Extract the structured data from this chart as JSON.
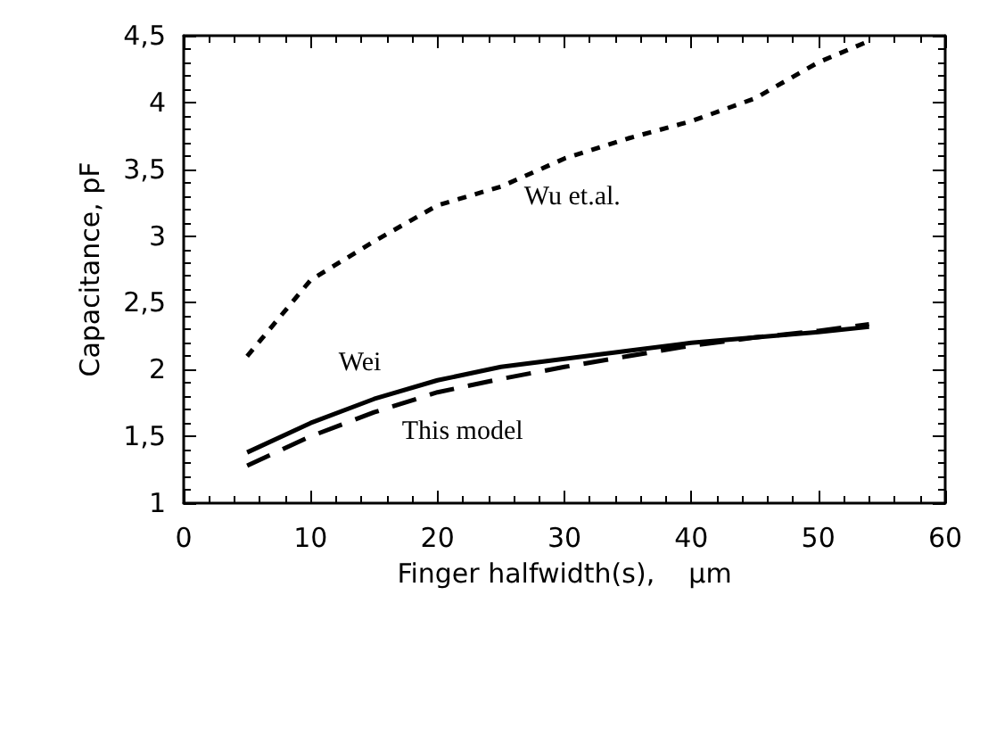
{
  "chart_data": {
    "type": "line",
    "xlabel": "Finger halfwidth(s),    µm",
    "ylabel": "Capacitance, pF",
    "x": [
      5,
      10,
      15,
      20,
      25,
      30,
      35,
      40,
      45,
      50,
      54
    ],
    "series": [
      {
        "name": "Wu et.al.",
        "color": "#000000",
        "line_style": "dotted",
        "values": [
          2.1,
          2.67,
          2.96,
          3.23,
          3.37,
          3.58,
          3.73,
          3.86,
          4.03,
          4.3,
          4.46
        ]
      },
      {
        "name": "Wei",
        "color": "#000000",
        "line_style": "solid",
        "values": [
          1.38,
          1.6,
          1.78,
          1.92,
          2.02,
          2.08,
          2.14,
          2.2,
          2.24,
          2.28,
          2.32
        ]
      },
      {
        "name": "This model",
        "color": "#000000",
        "line_style": "dashed",
        "values": [
          1.28,
          1.5,
          1.68,
          1.83,
          1.93,
          2.02,
          2.1,
          2.18,
          2.24,
          2.29,
          2.34
        ]
      }
    ],
    "xlim": [
      0,
      60
    ],
    "xticks": [
      0,
      10,
      20,
      30,
      40,
      50,
      60
    ],
    "ylim": [
      1,
      4.5
    ],
    "yticks": [
      1,
      {
        "value": 1.5,
        "label": "1,5"
      },
      2,
      {
        "value": 2.5,
        "label": "2,5"
      },
      3,
      {
        "value": 3.5,
        "label": "3,5"
      },
      4,
      {
        "value": 4.5,
        "label": "4,5"
      }
    ],
    "grid": false,
    "legend": false,
    "marker": "none"
  }
}
